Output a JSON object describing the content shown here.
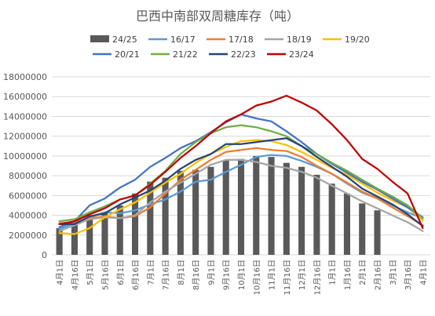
{
  "chart_data": {
    "type": "bar+line",
    "title": "巴西中南部双周糖库存（吨）",
    "xlabel": "",
    "ylabel": "",
    "ylim": [
      0,
      18000000
    ],
    "yticks": [
      0,
      2000000,
      4000000,
      6000000,
      8000000,
      10000000,
      12000000,
      14000000,
      16000000,
      18000000
    ],
    "ytick_labels": [
      "0",
      "2000000",
      "4000000",
      "6000000",
      "8000000",
      "10000000",
      "12000000",
      "14000000",
      "16000000",
      "18000000"
    ],
    "grid": "horizontal",
    "legend_position": "top",
    "categories": [
      "4月1日",
      "4月16日",
      "5月1日",
      "5月16日",
      "6月1日",
      "6月16日",
      "7月1日",
      "7月16日",
      "8月1日",
      "8月16日",
      "9月1日",
      "9月16日",
      "10月1日",
      "10月16日",
      "11月1日",
      "11月16日",
      "12月1日",
      "12月16日",
      "1月1日",
      "1月16日",
      "2月1日",
      "2月16日",
      "3月1日",
      "3月16日",
      "4月1日"
    ],
    "bar_series": {
      "name": "24/25",
      "color": "#595959",
      "values": [
        2700000,
        3100000,
        3600000,
        4200000,
        5000000,
        6200000,
        7400000,
        7800000,
        8500000,
        8600000,
        8900000,
        9600000,
        9700000,
        10000000,
        9900000,
        9300000,
        8900000,
        8100000,
        7200000,
        6200000,
        5200000,
        4500000,
        null,
        null,
        null
      ]
    },
    "line_series": [
      {
        "name": "16/17",
        "color": "#5B9BD5",
        "values": [
          2600000,
          3200000,
          3800000,
          4300000,
          4200000,
          4500000,
          5100000,
          5600000,
          6400000,
          7400000,
          7600000,
          8400000,
          9100000,
          9900000,
          10100000,
          10000000,
          9500000,
          8900000,
          8200000,
          7200000,
          6300000,
          5700000,
          5000000,
          4300000,
          3700000
        ]
      },
      {
        "name": "17/18",
        "color": "#ED7D31",
        "values": [
          3200000,
          3300000,
          3700000,
          3900000,
          3700000,
          3900000,
          4800000,
          6200000,
          7600000,
          8600000,
          9600000,
          10400000,
          10600000,
          10800000,
          10600000,
          10500000,
          9900000,
          9000000,
          8200000,
          7300000,
          6400000,
          5700000,
          4800000,
          3900000,
          3000000
        ]
      },
      {
        "name": "18/19",
        "color": "#A5A5A5",
        "values": [
          2400000,
          3000000,
          3600000,
          3800000,
          3700000,
          4000000,
          5300000,
          6400000,
          7300000,
          8200000,
          9100000,
          9600000,
          9600000,
          9400000,
          9000000,
          8800000,
          8400000,
          7800000,
          7000000,
          6200000,
          5400000,
          4700000,
          4000000,
          3300000,
          2400000
        ]
      },
      {
        "name": "19/20",
        "color": "#FFC000",
        "values": [
          2200000,
          2100000,
          2700000,
          3800000,
          4600000,
          5300000,
          6300000,
          7300000,
          8200000,
          9300000,
          10200000,
          10900000,
          11500000,
          11600000,
          11500000,
          11100000,
          10400000,
          9600000,
          8800000,
          8100000,
          7200000,
          6300000,
          5500000,
          4800000,
          3500000
        ]
      },
      {
        "name": "20/21",
        "color": "#4472C4",
        "values": [
          2800000,
          3400000,
          5000000,
          5700000,
          6800000,
          7600000,
          8900000,
          9800000,
          10800000,
          11500000,
          12400000,
          13400000,
          14200000,
          13800000,
          13500000,
          12500000,
          11400000,
          10200000,
          9200000,
          8300000,
          7400000,
          6600000,
          5700000,
          4800000,
          3800000
        ]
      },
      {
        "name": "21/22",
        "color": "#70AD47",
        "values": [
          3400000,
          3600000,
          4300000,
          4900000,
          5600000,
          6000000,
          7200000,
          8500000,
          10200000,
          11400000,
          12300000,
          12900000,
          13100000,
          12900000,
          12500000,
          12000000,
          11000000,
          10200000,
          9300000,
          8500000,
          7600000,
          6700000,
          5900000,
          5000000,
          3700000
        ]
      },
      {
        "name": "22/23",
        "color": "#264478",
        "values": [
          3100000,
          3100000,
          3900000,
          4200000,
          5100000,
          5800000,
          6500000,
          7500000,
          8700000,
          9600000,
          10200000,
          11200000,
          11200000,
          11400000,
          11600000,
          11800000,
          11000000,
          9900000,
          8900000,
          7900000,
          6700000,
          5900000,
          5100000,
          4100000,
          2900000
        ]
      },
      {
        "name": "23/24",
        "color": "#C00000",
        "values": [
          3100000,
          3400000,
          4100000,
          4700000,
          5600000,
          6000000,
          7100000,
          8400000,
          9800000,
          11000000,
          12300000,
          13500000,
          14200000,
          15100000,
          15500000,
          16100000,
          15400000,
          14600000,
          13200000,
          11600000,
          9700000,
          8700000,
          7400000,
          6200000,
          2700000
        ]
      }
    ],
    "legend_order": [
      "24/25",
      "16/17",
      "17/18",
      "18/19",
      "19/20",
      "20/21",
      "21/22",
      "22/23",
      "23/24"
    ]
  }
}
